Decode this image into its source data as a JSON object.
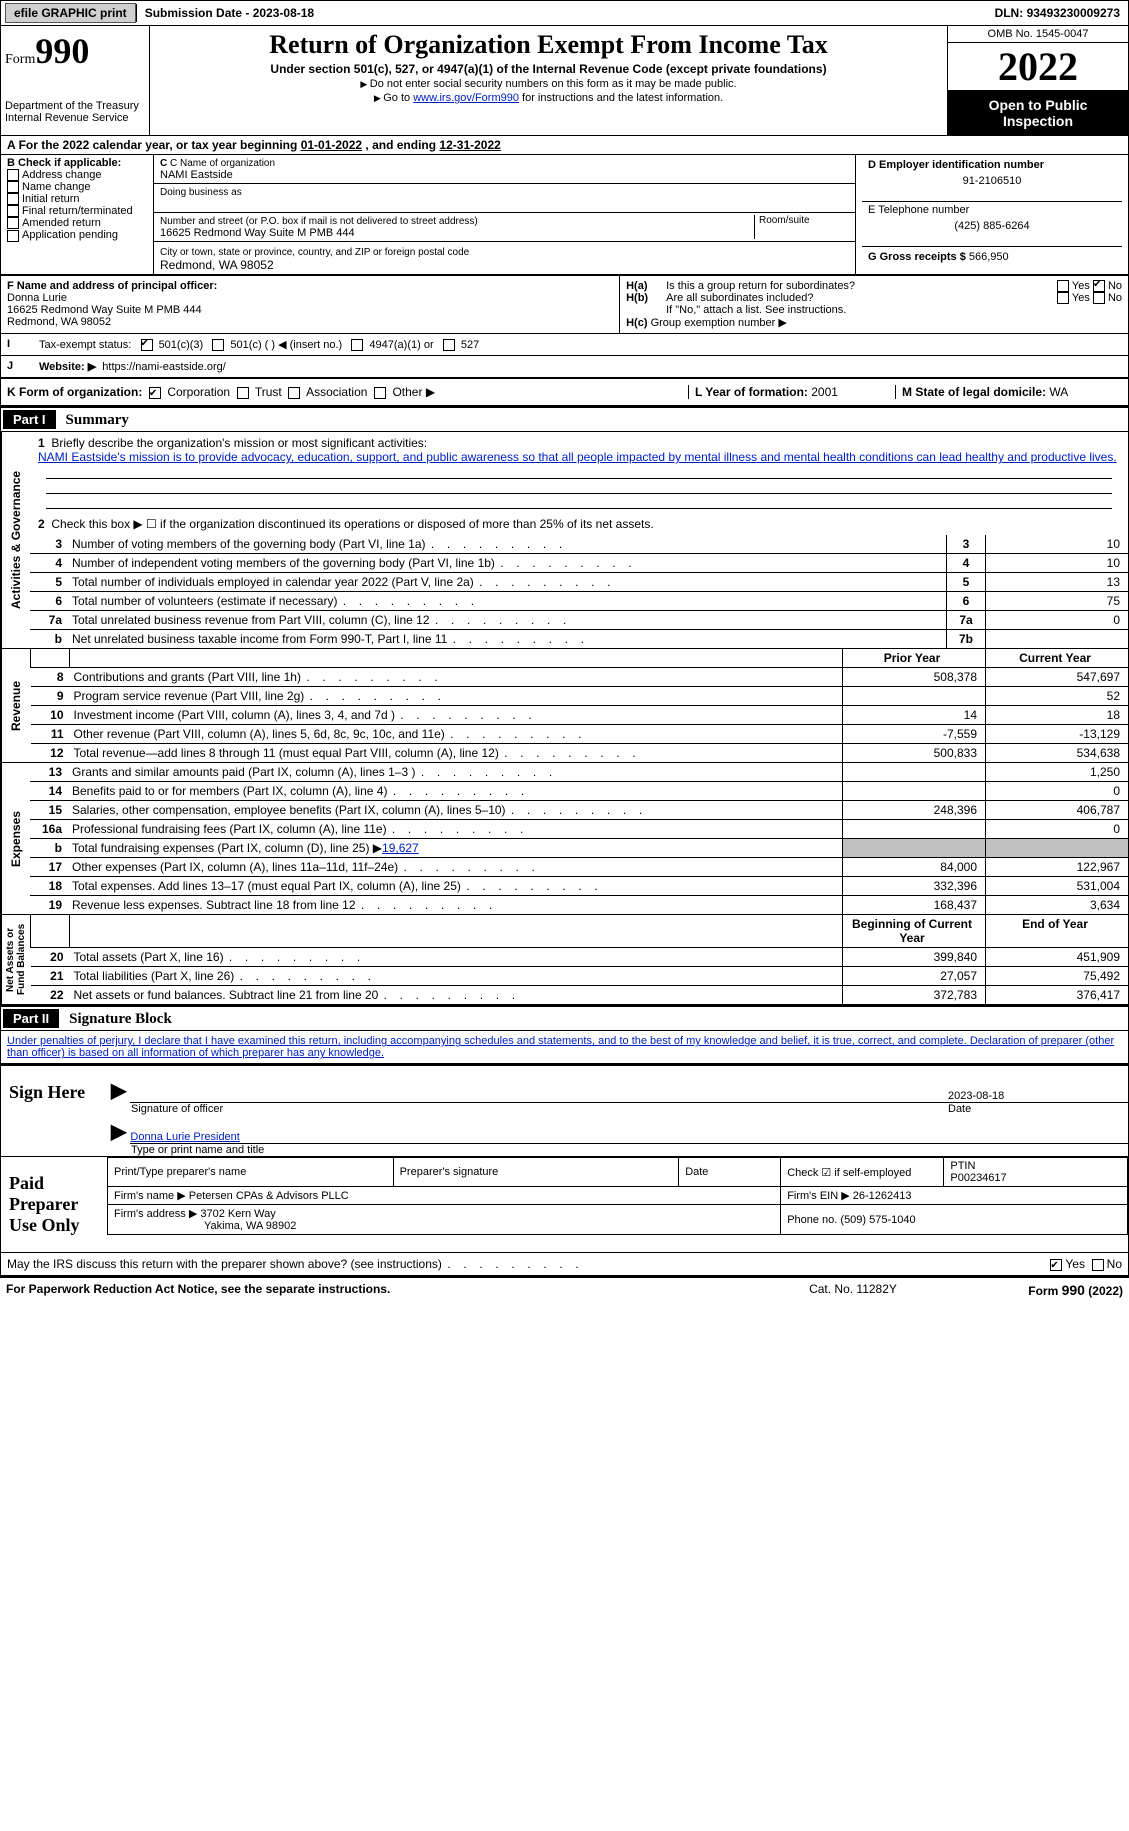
{
  "topbar": {
    "efile": "efile GRAPHIC print",
    "subdate_label": "Submission Date - ",
    "subdate": "2023-08-18",
    "dln_label": "DLN: ",
    "dln": "93493230009273"
  },
  "hdr": {
    "form_word": "Form",
    "form_num": "990",
    "dept": "Department of the Treasury\nInternal Revenue Service",
    "title": "Return of Organization Exempt From Income Tax",
    "subtitle": "Under section 501(c), 527, or 4947(a)(1) of the Internal Revenue Code (except private foundations)",
    "note1": "Do not enter social security numbers on this form as it may be made public.",
    "note2_a": "Go to ",
    "note2_link": "www.irs.gov/Form990",
    "note2_b": " for instructions and the latest information.",
    "omb": "OMB No. 1545-0047",
    "year": "2022",
    "open": "Open to Public Inspection"
  },
  "A": {
    "text": "For the 2022 calendar year, or tax year beginning ",
    "begin": "01-01-2022",
    "mid": " , and ending ",
    "end": "12-31-2022"
  },
  "B": {
    "label": "B Check if applicable:",
    "items": [
      "Address change",
      "Name change",
      "Initial return",
      "Final return/terminated",
      "Amended return",
      "Application pending"
    ]
  },
  "C": {
    "name_lbl": "C Name of organization",
    "name": "NAMI Eastside",
    "dba_lbl": "Doing business as",
    "dba": "",
    "addr_lbl": "Number and street (or P.O. box if mail is not delivered to street address)",
    "room_lbl": "Room/suite",
    "addr": "16625 Redmond Way Suite M PMB 444",
    "city_lbl": "City or town, state or province, country, and ZIP or foreign postal code",
    "city": "Redmond, WA  98052"
  },
  "D": {
    "lbl": "D Employer identification number",
    "val": "91-2106510"
  },
  "E": {
    "lbl": "E Telephone number",
    "val": "(425) 885-6264"
  },
  "G": {
    "lbl": "G Gross receipts $ ",
    "val": "566,950"
  },
  "F": {
    "lbl": "F  Name and address of principal officer:",
    "line1": "Donna Lurie",
    "line2": "16625 Redmond Way Suite M PMB 444",
    "line3": "Redmond, WA  98052"
  },
  "H": {
    "a": "Is this a group return for subordinates?",
    "yes": "Yes",
    "no": "No",
    "b": "Are all subordinates included?",
    "bno": "If \"No,\" attach a list. See instructions.",
    "c": "Group exemption number ▶"
  },
  "I": {
    "lbl": "Tax-exempt status:",
    "o1": "501(c)(3)",
    "o2": "501(c) (   ) ◀ (insert no.)",
    "o3": "4947(a)(1) or",
    "o4": "527"
  },
  "J": {
    "lbl": "Website: ▶",
    "val": "https://nami-eastside.org/"
  },
  "K": {
    "lbl": "K Form of organization:",
    "o1": "Corporation",
    "o2": "Trust",
    "o3": "Association",
    "o4": "Other ▶"
  },
  "L": {
    "lbl": "L Year of formation: ",
    "val": "2001"
  },
  "M": {
    "lbl": "M State of legal domicile: ",
    "val": "WA"
  },
  "partI": {
    "bar": "Part I",
    "title": "Summary"
  },
  "q1": {
    "num": "1",
    "lbl": "Briefly describe the organization's mission or most significant activities:",
    "text": "NAMI Eastside's mission is to provide advocacy, education, support, and public awareness so that all people impacted by mental illness and mental health conditions can lead healthy and productive lives."
  },
  "q2": {
    "num": "2",
    "text": "Check this box ▶ ☐ if the organization discontinued its operations or disposed of more than 25% of its net assets."
  },
  "gov_rows": [
    {
      "n": "3",
      "t": "Number of voting members of the governing body (Part VI, line 1a)",
      "box": "3",
      "v": "10"
    },
    {
      "n": "4",
      "t": "Number of independent voting members of the governing body (Part VI, line 1b)",
      "box": "4",
      "v": "10"
    },
    {
      "n": "5",
      "t": "Total number of individuals employed in calendar year 2022 (Part V, line 2a)",
      "box": "5",
      "v": "13"
    },
    {
      "n": "6",
      "t": "Total number of volunteers (estimate if necessary)",
      "box": "6",
      "v": "75"
    },
    {
      "n": "7a",
      "t": "Total unrelated business revenue from Part VIII, column (C), line 12",
      "box": "7a",
      "v": "0"
    },
    {
      "n": "b",
      "t": "Net unrelated business taxable income from Form 990-T, Part I, line 11",
      "box": "7b",
      "v": ""
    }
  ],
  "col_hdr": {
    "prior": "Prior Year",
    "curr": "Current Year",
    "boy": "Beginning of Current Year",
    "eoy": "End of Year"
  },
  "rev_rows": [
    {
      "n": "8",
      "t": "Contributions and grants (Part VIII, line 1h)",
      "p": "508,378",
      "c": "547,697"
    },
    {
      "n": "9",
      "t": "Program service revenue (Part VIII, line 2g)",
      "p": "",
      "c": "52"
    },
    {
      "n": "10",
      "t": "Investment income (Part VIII, column (A), lines 3, 4, and 7d )",
      "p": "14",
      "c": "18"
    },
    {
      "n": "11",
      "t": "Other revenue (Part VIII, column (A), lines 5, 6d, 8c, 9c, 10c, and 11e)",
      "p": "-7,559",
      "c": "-13,129"
    },
    {
      "n": "12",
      "t": "Total revenue—add lines 8 through 11 (must equal Part VIII, column (A), line 12)",
      "p": "500,833",
      "c": "534,638"
    }
  ],
  "exp_rows": [
    {
      "n": "13",
      "t": "Grants and similar amounts paid (Part IX, column (A), lines 1–3 )",
      "p": "",
      "c": "1,250"
    },
    {
      "n": "14",
      "t": "Benefits paid to or for members (Part IX, column (A), line 4)",
      "p": "",
      "c": "0"
    },
    {
      "n": "15",
      "t": "Salaries, other compensation, employee benefits (Part IX, column (A), lines 5–10)",
      "p": "248,396",
      "c": "406,787"
    },
    {
      "n": "16a",
      "t": "Professional fundraising fees (Part IX, column (A), line 11e)",
      "p": "",
      "c": "0"
    }
  ],
  "exp_b": {
    "n": "b",
    "t": "Total fundraising expenses (Part IX, column (D), line 25) ▶",
    "val": "19,627"
  },
  "exp_rows2": [
    {
      "n": "17",
      "t": "Other expenses (Part IX, column (A), lines 11a–11d, 11f–24e)",
      "p": "84,000",
      "c": "122,967"
    },
    {
      "n": "18",
      "t": "Total expenses. Add lines 13–17 (must equal Part IX, column (A), line 25)",
      "p": "332,396",
      "c": "531,004"
    },
    {
      "n": "19",
      "t": "Revenue less expenses. Subtract line 18 from line 12",
      "p": "168,437",
      "c": "3,634"
    }
  ],
  "na_rows": [
    {
      "n": "20",
      "t": "Total assets (Part X, line 16)",
      "p": "399,840",
      "c": "451,909"
    },
    {
      "n": "21",
      "t": "Total liabilities (Part X, line 26)",
      "p": "27,057",
      "c": "75,492"
    },
    {
      "n": "22",
      "t": "Net assets or fund balances. Subtract line 21 from line 20",
      "p": "372,783",
      "c": "376,417"
    }
  ],
  "vlabels": {
    "gov": "Activities & Governance",
    "rev": "Revenue",
    "exp": "Expenses",
    "na": "Net Assets or\nFund Balances"
  },
  "partII": {
    "bar": "Part II",
    "title": "Signature Block"
  },
  "penalty": "Under penalties of perjury, I declare that I have examined this return, including accompanying schedules and statements, and to the best of my knowledge and belief, it is true, correct, and complete. Declaration of preparer (other than officer) is based on all information of which preparer has any knowledge.",
  "sign": {
    "lbl": "Sign Here",
    "sigoff": "Signature of officer",
    "date": "2023-08-18",
    "datelbl": "Date",
    "name": "Donna Lurie  President",
    "typelbl": "Type or print name and title"
  },
  "paid": {
    "lbl": "Paid Preparer Use Only",
    "h1": "Print/Type preparer's name",
    "h2": "Preparer's signature",
    "h3": "Date",
    "h4": "Check ☑ if self-employed",
    "h5": "PTIN",
    "ptin": "P00234617",
    "firmname_lbl": "Firm's name  ▶ ",
    "firmname": "Petersen CPAs & Advisors PLLC",
    "ein_lbl": "Firm's EIN ▶ ",
    "ein": "26-1262413",
    "addr_lbl": "Firm's address ▶ ",
    "addr": "3702 Kern Way",
    "addr2": "Yakima, WA  98902",
    "phone_lbl": "Phone no. ",
    "phone": "(509) 575-1040"
  },
  "discuss": {
    "t": "May the IRS discuss this return with the preparer shown above? (see instructions)",
    "yes": "Yes",
    "no": "No"
  },
  "footer": {
    "l": "For Paperwork Reduction Act Notice, see the separate instructions.",
    "m": "Cat. No. 11282Y",
    "r": "Form 990 (2022)"
  }
}
